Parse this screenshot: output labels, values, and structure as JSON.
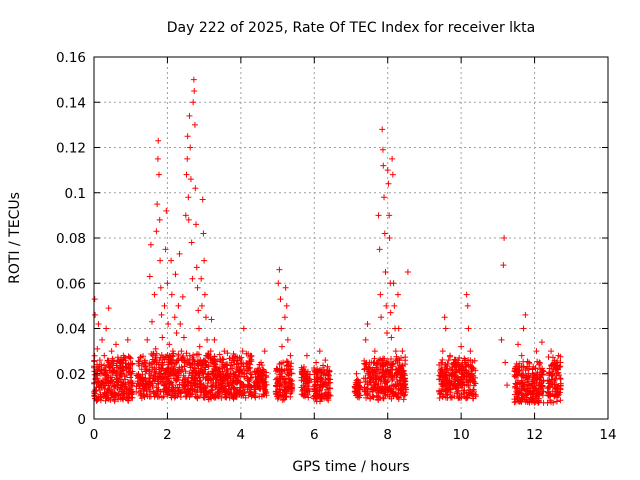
{
  "chart_data": {
    "type": "scatter",
    "title": "Day 222 of 2025, Rate Of TEC Index for receiver lkta",
    "xlabel": "GPS time / hours",
    "ylabel": "ROTI / TECUs",
    "xlim": [
      0,
      14
    ],
    "ylim": [
      0,
      0.16
    ],
    "x_ticks": [
      0,
      2,
      4,
      6,
      8,
      10,
      12,
      14
    ],
    "x_tick_labels": [
      "0",
      "2",
      "4",
      "6",
      "8",
      "10",
      "12",
      "14"
    ],
    "y_ticks": [
      0,
      0.02,
      0.04,
      0.06,
      0.08,
      0.1,
      0.12,
      0.14,
      0.16
    ],
    "y_tick_labels": [
      "0",
      "0.02",
      "0.04",
      "0.06",
      "0.08",
      "0.1",
      "0.12",
      "0.14",
      "0.16"
    ],
    "grid": true,
    "marker": "plus",
    "color": "#ff0000",
    "series": [
      {
        "name": "ROTI",
        "points": [
          [
            0.0,
            0.012
          ],
          [
            0.02,
            0.053
          ],
          [
            0.03,
            0.046
          ],
          [
            0.05,
            0.021
          ],
          [
            0.07,
            0.008
          ],
          [
            0.09,
            0.031
          ],
          [
            0.1,
            0.018
          ],
          [
            0.12,
            0.042
          ],
          [
            0.14,
            0.014
          ],
          [
            0.16,
            0.026
          ],
          [
            0.18,
            0.01
          ],
          [
            0.2,
            0.022
          ],
          [
            0.22,
            0.035
          ],
          [
            0.25,
            0.016
          ],
          [
            0.28,
            0.028
          ],
          [
            0.3,
            0.011
          ],
          [
            0.33,
            0.04
          ],
          [
            0.36,
            0.019
          ],
          [
            0.39,
            0.013
          ],
          [
            0.4,
            0.049
          ],
          [
            0.42,
            0.024
          ],
          [
            0.45,
            0.017
          ],
          [
            0.48,
            0.03
          ],
          [
            0.5,
            0.012
          ],
          [
            0.53,
            0.021
          ],
          [
            0.56,
            0.015
          ],
          [
            0.6,
            0.033
          ],
          [
            0.63,
            0.018
          ],
          [
            0.66,
            0.011
          ],
          [
            0.7,
            0.025
          ],
          [
            0.73,
            0.014
          ],
          [
            0.76,
            0.02
          ],
          [
            0.8,
            0.028
          ],
          [
            0.84,
            0.013
          ],
          [
            0.88,
            0.022
          ],
          [
            0.92,
            0.035
          ],
          [
            0.95,
            0.016
          ],
          [
            1.0,
            0.024
          ],
          [
            1.15,
            0.012
          ],
          [
            1.2,
            0.018
          ],
          [
            1.25,
            0.015
          ],
          [
            1.3,
            0.022
          ],
          [
            1.35,
            0.011
          ],
          [
            1.4,
            0.014
          ],
          [
            1.45,
            0.035
          ],
          [
            1.5,
            0.02
          ],
          [
            1.52,
            0.063
          ],
          [
            1.55,
            0.077
          ],
          [
            1.58,
            0.043
          ],
          [
            1.6,
            0.028
          ],
          [
            1.62,
            0.018
          ],
          [
            1.65,
            0.055
          ],
          [
            1.68,
            0.031
          ],
          [
            1.7,
            0.083
          ],
          [
            1.72,
            0.095
          ],
          [
            1.74,
            0.115
          ],
          [
            1.75,
            0.123
          ],
          [
            1.77,
            0.108
          ],
          [
            1.79,
            0.088
          ],
          [
            1.8,
            0.07
          ],
          [
            1.82,
            0.058
          ],
          [
            1.84,
            0.046
          ],
          [
            1.86,
            0.036
          ],
          [
            1.88,
            0.024
          ],
          [
            1.9,
            0.015
          ],
          [
            1.92,
            0.05
          ],
          [
            1.95,
            0.075
          ],
          [
            1.97,
            0.092
          ],
          [
            2.0,
            0.06
          ],
          [
            2.02,
            0.042
          ],
          [
            2.05,
            0.033
          ],
          [
            2.08,
            0.022
          ],
          [
            2.1,
            0.07
          ],
          [
            2.12,
            0.055
          ],
          [
            2.15,
            0.03
          ],
          [
            2.18,
            0.018
          ],
          [
            2.2,
            0.045
          ],
          [
            2.22,
            0.064
          ],
          [
            2.25,
            0.038
          ],
          [
            2.28,
            0.026
          ],
          [
            2.3,
            0.05
          ],
          [
            2.33,
            0.073
          ],
          [
            2.35,
            0.042
          ],
          [
            2.38,
            0.03
          ],
          [
            2.4,
            0.016
          ],
          [
            2.42,
            0.054
          ],
          [
            2.45,
            0.036
          ],
          [
            2.48,
            0.025
          ],
          [
            2.5,
            0.09
          ],
          [
            2.52,
            0.108
          ],
          [
            2.54,
            0.115
          ],
          [
            2.55,
            0.125
          ],
          [
            2.57,
            0.098
          ],
          [
            2.58,
            0.088
          ],
          [
            2.6,
            0.134
          ],
          [
            2.62,
            0.12
          ],
          [
            2.64,
            0.106
          ],
          [
            2.66,
            0.078
          ],
          [
            2.68,
            0.062
          ],
          [
            2.7,
            0.14
          ],
          [
            2.72,
            0.15
          ],
          [
            2.73,
            0.145
          ],
          [
            2.75,
            0.13
          ],
          [
            2.76,
            0.102
          ],
          [
            2.78,
            0.086
          ],
          [
            2.8,
            0.067
          ],
          [
            2.82,
            0.058
          ],
          [
            2.84,
            0.048
          ],
          [
            2.86,
            0.04
          ],
          [
            2.88,
            0.032
          ],
          [
            2.9,
            0.025
          ],
          [
            2.92,
            0.062
          ],
          [
            2.94,
            0.05
          ],
          [
            2.96,
            0.097
          ],
          [
            2.98,
            0.082
          ],
          [
            3.0,
            0.07
          ],
          [
            3.02,
            0.055
          ],
          [
            3.05,
            0.045
          ],
          [
            3.08,
            0.035
          ],
          [
            3.1,
            0.028
          ],
          [
            3.12,
            0.02
          ],
          [
            3.15,
            0.012
          ],
          [
            3.18,
            0.03
          ],
          [
            3.2,
            0.044
          ],
          [
            3.22,
            0.025
          ],
          [
            3.25,
            0.018
          ],
          [
            3.28,
            0.035
          ],
          [
            3.3,
            0.014
          ],
          [
            3.35,
            0.022
          ],
          [
            3.4,
            0.01
          ],
          [
            3.45,
            0.026
          ],
          [
            3.5,
            0.016
          ],
          [
            3.55,
            0.03
          ],
          [
            3.6,
            0.012
          ],
          [
            3.65,
            0.02
          ],
          [
            3.7,
            0.015
          ],
          [
            3.75,
            0.025
          ],
          [
            3.8,
            0.009
          ],
          [
            3.85,
            0.018
          ],
          [
            3.9,
            0.013
          ],
          [
            3.95,
            0.023
          ],
          [
            4.0,
            0.016
          ],
          [
            4.05,
            0.03
          ],
          [
            4.08,
            0.04
          ],
          [
            4.1,
            0.012
          ],
          [
            4.15,
            0.02
          ],
          [
            4.2,
            0.014
          ],
          [
            4.25,
            0.027
          ],
          [
            4.4,
            0.013
          ],
          [
            4.45,
            0.02
          ],
          [
            4.5,
            0.01
          ],
          [
            4.55,
            0.025
          ],
          [
            4.6,
            0.016
          ],
          [
            4.65,
            0.03
          ],
          [
            4.95,
            0.012
          ],
          [
            5.0,
            0.022
          ],
          [
            5.02,
            0.06
          ],
          [
            5.05,
            0.066
          ],
          [
            5.08,
            0.053
          ],
          [
            5.1,
            0.04
          ],
          [
            5.12,
            0.032
          ],
          [
            5.15,
            0.025
          ],
          [
            5.18,
            0.018
          ],
          [
            5.2,
            0.045
          ],
          [
            5.22,
            0.058
          ],
          [
            5.25,
            0.05
          ],
          [
            5.28,
            0.035
          ],
          [
            5.3,
            0.024
          ],
          [
            5.32,
            0.015
          ],
          [
            5.35,
            0.028
          ],
          [
            5.38,
            0.012
          ],
          [
            5.65,
            0.014
          ],
          [
            5.7,
            0.022
          ],
          [
            5.75,
            0.01
          ],
          [
            5.8,
            0.028
          ],
          [
            5.85,
            0.017
          ],
          [
            6.0,
            0.013
          ],
          [
            6.05,
            0.025
          ],
          [
            6.1,
            0.018
          ],
          [
            6.15,
            0.03
          ],
          [
            6.2,
            0.011
          ],
          [
            6.25,
            0.02
          ],
          [
            6.3,
            0.026
          ],
          [
            6.35,
            0.009
          ],
          [
            6.4,
            0.016
          ],
          [
            7.1,
            0.012
          ],
          [
            7.15,
            0.02
          ],
          [
            7.2,
            0.014
          ],
          [
            7.35,
            0.018
          ],
          [
            7.4,
            0.035
          ],
          [
            7.45,
            0.042
          ],
          [
            7.5,
            0.025
          ],
          [
            7.55,
            0.015
          ],
          [
            7.6,
            0.022
          ],
          [
            7.65,
            0.03
          ],
          [
            7.7,
            0.02
          ],
          [
            7.75,
            0.09
          ],
          [
            7.78,
            0.075
          ],
          [
            7.8,
            0.055
          ],
          [
            7.82,
            0.045
          ],
          [
            7.85,
            0.128
          ],
          [
            7.87,
            0.119
          ],
          [
            7.88,
            0.112
          ],
          [
            7.9,
            0.098
          ],
          [
            7.92,
            0.082
          ],
          [
            7.94,
            0.065
          ],
          [
            7.96,
            0.05
          ],
          [
            7.98,
            0.038
          ],
          [
            8.0,
            0.11
          ],
          [
            8.02,
            0.104
          ],
          [
            8.04,
            0.09
          ],
          [
            8.05,
            0.08
          ],
          [
            8.07,
            0.06
          ],
          [
            8.08,
            0.047
          ],
          [
            8.1,
            0.036
          ],
          [
            8.12,
            0.115
          ],
          [
            8.14,
            0.108
          ],
          [
            8.16,
            0.06
          ],
          [
            8.18,
            0.05
          ],
          [
            8.2,
            0.04
          ],
          [
            8.22,
            0.03
          ],
          [
            8.25,
            0.022
          ],
          [
            8.28,
            0.055
          ],
          [
            8.3,
            0.04
          ],
          [
            8.32,
            0.026
          ],
          [
            8.35,
            0.015
          ],
          [
            8.4,
            0.03
          ],
          [
            8.45,
            0.02
          ],
          [
            8.5,
            0.013
          ],
          [
            8.55,
            0.065
          ],
          [
            9.4,
            0.012
          ],
          [
            9.45,
            0.02
          ],
          [
            9.5,
            0.03
          ],
          [
            9.55,
            0.045
          ],
          [
            9.58,
            0.04
          ],
          [
            9.6,
            0.022
          ],
          [
            9.65,
            0.015
          ],
          [
            9.7,
            0.028
          ],
          [
            9.75,
            0.01
          ],
          [
            9.8,
            0.019
          ],
          [
            9.85,
            0.026
          ],
          [
            9.9,
            0.012
          ],
          [
            9.95,
            0.022
          ],
          [
            10.0,
            0.032
          ],
          [
            10.05,
            0.016
          ],
          [
            10.1,
            0.025
          ],
          [
            10.15,
            0.055
          ],
          [
            10.18,
            0.05
          ],
          [
            10.2,
            0.04
          ],
          [
            10.25,
            0.03
          ],
          [
            10.3,
            0.02
          ],
          [
            10.35,
            0.012
          ],
          [
            11.1,
            0.035
          ],
          [
            11.15,
            0.068
          ],
          [
            11.17,
            0.08
          ],
          [
            11.2,
            0.025
          ],
          [
            11.25,
            0.015
          ],
          [
            11.5,
            0.012
          ],
          [
            11.55,
            0.033
          ],
          [
            11.6,
            0.02
          ],
          [
            11.65,
            0.028
          ],
          [
            11.7,
            0.04
          ],
          [
            11.75,
            0.046
          ],
          [
            11.8,
            0.015
          ],
          [
            11.85,
            0.025
          ],
          [
            11.9,
            0.011
          ],
          [
            11.95,
            0.02
          ],
          [
            12.0,
            0.016
          ],
          [
            12.05,
            0.03
          ],
          [
            12.1,
            0.013
          ],
          [
            12.15,
            0.022
          ],
          [
            12.2,
            0.034
          ],
          [
            12.4,
            0.014
          ],
          [
            12.45,
            0.03
          ],
          [
            12.5,
            0.02
          ],
          [
            12.55,
            0.025
          ],
          [
            12.6,
            0.012
          ],
          [
            12.65,
            0.028
          ],
          [
            12.7,
            0.018
          ]
        ]
      }
    ],
    "band_fill": [
      {
        "x0": 0.0,
        "x1": 1.05,
        "ymin": 0.005,
        "ymax": 0.028
      },
      {
        "x0": 1.15,
        "x1": 4.3,
        "ymin": 0.006,
        "ymax": 0.03
      },
      {
        "x0": 4.35,
        "x1": 4.7,
        "ymin": 0.007,
        "ymax": 0.026
      },
      {
        "x0": 4.95,
        "x1": 5.4,
        "ymin": 0.006,
        "ymax": 0.026
      },
      {
        "x0": 5.65,
        "x1": 5.88,
        "ymin": 0.007,
        "ymax": 0.024
      },
      {
        "x0": 5.98,
        "x1": 6.45,
        "ymin": 0.005,
        "ymax": 0.024
      },
      {
        "x0": 7.1,
        "x1": 7.25,
        "ymin": 0.008,
        "ymax": 0.018
      },
      {
        "x0": 7.35,
        "x1": 8.5,
        "ymin": 0.006,
        "ymax": 0.028
      },
      {
        "x0": 9.4,
        "x1": 10.4,
        "ymin": 0.006,
        "ymax": 0.028
      },
      {
        "x0": 11.45,
        "x1": 12.25,
        "ymin": 0.004,
        "ymax": 0.026
      },
      {
        "x0": 12.35,
        "x1": 12.72,
        "ymin": 0.004,
        "ymax": 0.028
      }
    ]
  }
}
